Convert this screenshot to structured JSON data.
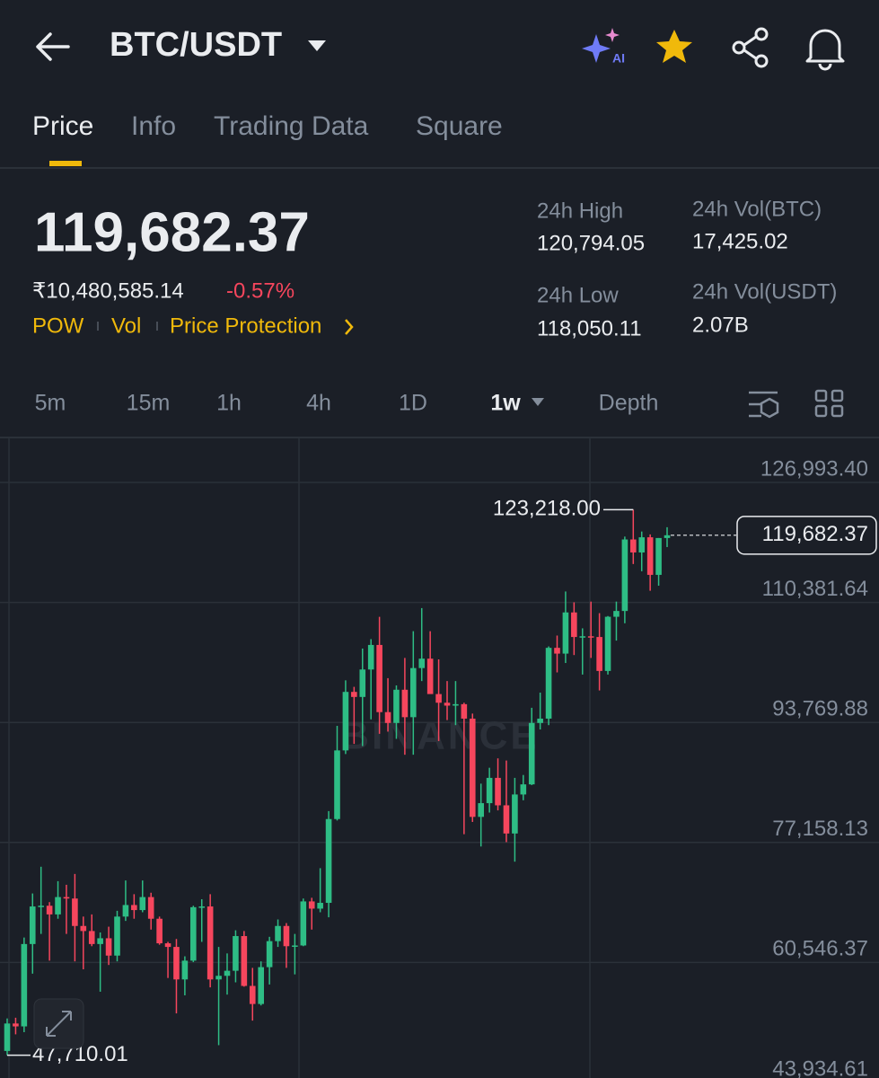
{
  "header": {
    "symbol": "BTC/USDT",
    "ai_badge": "AI"
  },
  "tabs": [
    "Price",
    "Info",
    "Trading Data",
    "Square"
  ],
  "ticker": {
    "price": "119,682.37",
    "fiat": "₹10,480,585.14",
    "change": "-0.57%",
    "tags": [
      "POW",
      "Vol",
      "Price Protection"
    ]
  },
  "stats": [
    {
      "label": "24h High",
      "value": "120,794.05"
    },
    {
      "label": "24h Vol(BTC)",
      "value": "17,425.02"
    },
    {
      "label": "24h Low",
      "value": "118,050.11"
    },
    {
      "label": "24h Vol(USDT)",
      "value": "2.07B"
    }
  ],
  "intervals": [
    "5m",
    "15m",
    "1h",
    "4h",
    "1D",
    "1w",
    "Depth"
  ],
  "chart_data": {
    "type": "candlestick",
    "watermark": "BINANCE",
    "open": [
      48300,
      52100,
      51700,
      63100,
      68300,
      68400,
      67200,
      69600,
      69400,
      65600,
      64900,
      63100,
      63900,
      61500,
      66900,
      68500,
      67800,
      69600,
      66600,
      63200,
      62700,
      58200,
      60800,
      68200,
      68300,
      58200,
      58700,
      59400,
      64200,
      57300,
      54800,
      59900,
      63500,
      65600,
      62800,
      62900,
      69000,
      68000,
      68800,
      80400,
      89900,
      98000,
      97300,
      101100,
      104500,
      95200,
      93700,
      98300,
      94500,
      101300,
      102600,
      97700,
      96500,
      96100,
      96300,
      94300,
      80700,
      82600,
      86100,
      82300,
      78400,
      83800,
      85200,
      93700,
      94300,
      104100,
      103300,
      109000,
      105600,
      105700,
      105600,
      100900,
      108400,
      109200,
      119100,
      117300,
      119400,
      114200,
      119300
    ],
    "high": [
      52800,
      52900,
      64000,
      70100,
      73800,
      68900,
      71800,
      71300,
      72800,
      66900,
      67200,
      64700,
      65500,
      67700,
      71900,
      70000,
      71900,
      70200,
      66900,
      63400,
      63800,
      61400,
      68400,
      69300,
      70000,
      62700,
      61800,
      65000,
      64900,
      59800,
      60700,
      64100,
      66500,
      66000,
      64500,
      69400,
      69500,
      73600,
      81500,
      93300,
      99600,
      98700,
      104000,
      105300,
      108400,
      99900,
      98900,
      102700,
      106400,
      109600,
      106400,
      102500,
      99500,
      99500,
      96500,
      95000,
      85300,
      87500,
      88800,
      88500,
      86100,
      86500,
      95800,
      97900,
      104300,
      105800,
      111900,
      110400,
      106800,
      110500,
      108900,
      108500,
      110500,
      119500,
      123218,
      120200,
      119800,
      119300,
      120794.05
    ],
    "low": [
      47710.01,
      50600,
      50900,
      59000,
      64500,
      60800,
      66600,
      64500,
      60700,
      59600,
      62800,
      56500,
      60200,
      60700,
      66300,
      66600,
      67500,
      65100,
      63000,
      58400,
      53500,
      56000,
      60600,
      63400,
      57100,
      49100,
      56100,
      57800,
      57200,
      52500,
      54600,
      57500,
      62700,
      59800,
      58900,
      62800,
      65100,
      67500,
      66800,
      80200,
      89400,
      90800,
      90500,
      94200,
      92200,
      92500,
      91500,
      89300,
      89300,
      99500,
      97800,
      91200,
      94100,
      93400,
      78300,
      80000,
      76600,
      81300,
      81600,
      77200,
      74500,
      83000,
      85100,
      92800,
      93400,
      100700,
      102000,
      103100,
      100400,
      102700,
      98200,
      100400,
      105100,
      107500,
      115700,
      114700,
      112000,
      112700,
      118050.11
    ],
    "close": [
      52100,
      51700,
      63100,
      68300,
      68400,
      67200,
      69600,
      69400,
      65600,
      64900,
      63100,
      63900,
      61500,
      66900,
      68500,
      67800,
      69600,
      66600,
      63200,
      62700,
      58200,
      60800,
      68200,
      68300,
      58200,
      58700,
      59400,
      64200,
      57300,
      54800,
      59900,
      63500,
      65600,
      62800,
      62900,
      69000,
      68000,
      68800,
      80400,
      89900,
      98000,
      97300,
      101100,
      104500,
      95200,
      93700,
      98300,
      94500,
      101300,
      102600,
      97700,
      96500,
      96100,
      96300,
      94300,
      80700,
      82600,
      86100,
      82300,
      78400,
      83800,
      85200,
      93700,
      94300,
      104100,
      103300,
      109000,
      105600,
      105700,
      105600,
      100900,
      108400,
      109200,
      119100,
      117300,
      119400,
      114200,
      119300,
      119682.37
    ],
    "up_color": "#2ebd85",
    "down_color": "#f6465d",
    "ylim": [
      44556,
      133215
    ],
    "yticks": [
      {
        "value": 126993.4,
        "label": "126,993.40"
      },
      {
        "value": 110381.64,
        "label": "110,381.64"
      },
      {
        "value": 93769.88,
        "label": "93,769.88"
      },
      {
        "value": 77158.13,
        "label": "77,158.13"
      },
      {
        "value": 60546.37,
        "label": "60,546.37"
      },
      {
        "value": 43934.61,
        "label": "43,934.61"
      }
    ],
    "grid": true,
    "high_marker": {
      "value": 123218,
      "label": "123,218.00"
    },
    "low_marker": {
      "value": 47710.01,
      "label": "47,710.01"
    },
    "last_price": {
      "value": 119682.37,
      "label": "119,682.37"
    }
  }
}
